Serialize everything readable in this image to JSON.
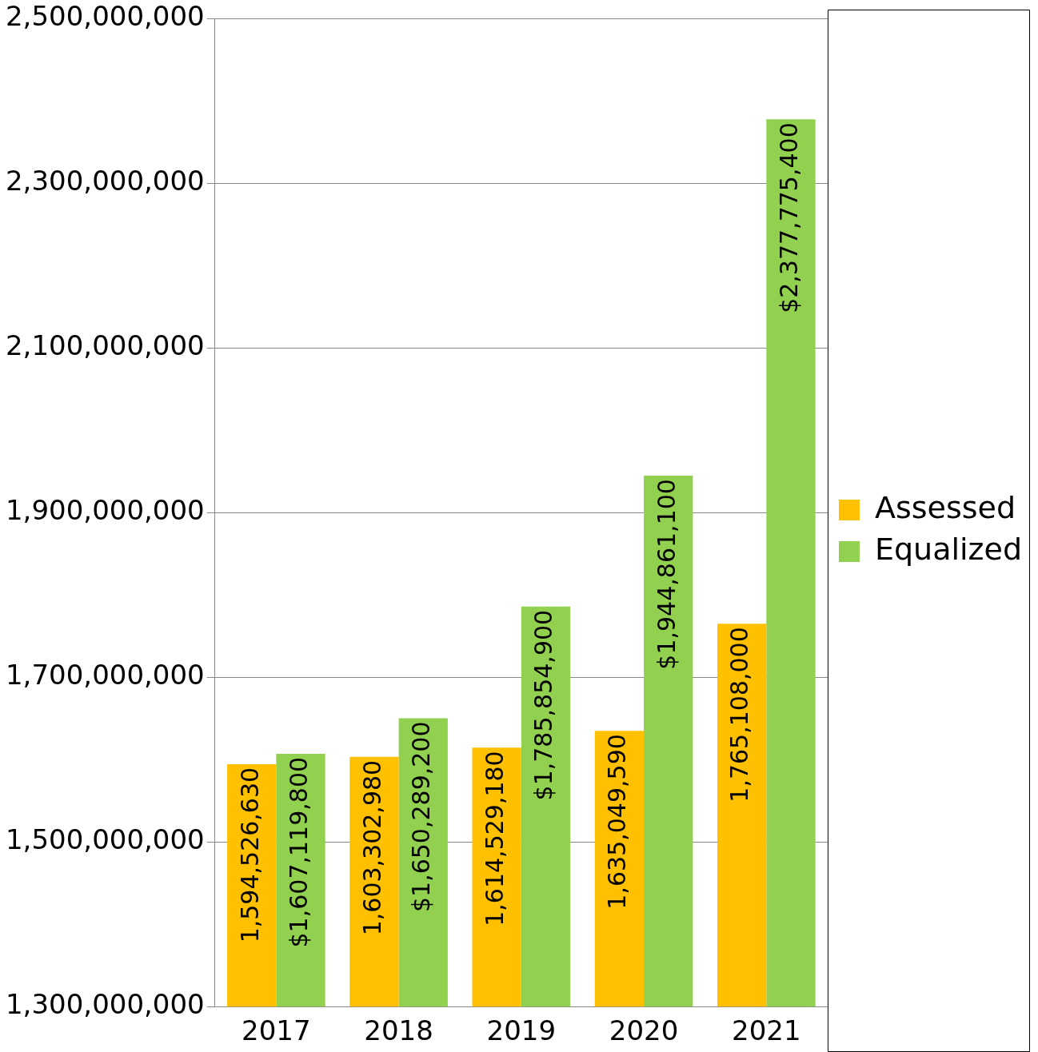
{
  "chart_data": {
    "type": "bar",
    "categories": [
      "2017",
      "2018",
      "2019",
      "2020",
      "2021"
    ],
    "series": [
      {
        "name": "Assessed",
        "color": "#ffc000",
        "values": [
          1594526630,
          1603302980,
          1614529180,
          1635049590,
          1765108000
        ],
        "value_labels": [
          "1,594,526,630",
          "1,603,302,980",
          "1,614,529,180",
          "1,635,049,590",
          "1,765,108,000"
        ]
      },
      {
        "name": "Equalized",
        "color": "#92d050",
        "values": [
          1607119800,
          1650289200,
          1785854900,
          1944861100,
          2377775400
        ],
        "value_labels": [
          "$1,607,119,800",
          "$1,650,289,200",
          "$1,785,854,900",
          "$1,944,861,100",
          "$2,377,775,400"
        ]
      }
    ],
    "ylim": [
      1300000000,
      2500000000
    ],
    "yticks": [
      {
        "value": 1300000000,
        "label": "1,300,000,000"
      },
      {
        "value": 1500000000,
        "label": "1,500,000,000"
      },
      {
        "value": 1700000000,
        "label": "1,700,000,000"
      },
      {
        "value": 1900000000,
        "label": "1,900,000,000"
      },
      {
        "value": 2100000000,
        "label": "2,100,000,000"
      },
      {
        "value": 2300000000,
        "label": "2,300,000,000"
      },
      {
        "value": 2500000000,
        "label": "2,500,000,000"
      }
    ],
    "grid": "y",
    "legend": "right"
  }
}
